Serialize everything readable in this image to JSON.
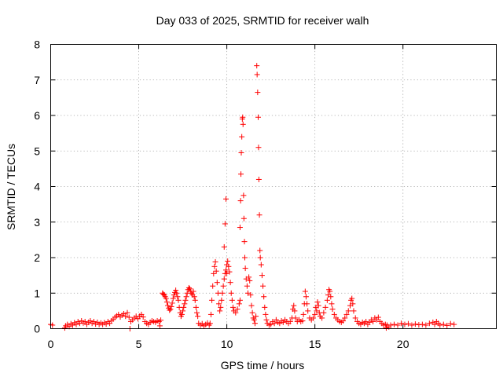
{
  "chart_data": {
    "type": "scatter",
    "title": "Day 033 of 2025, SRMTID for receiver walh",
    "xlabel": "GPS time / hours",
    "ylabel": "SRMTID / TECUs",
    "xlim": [
      0,
      25.3
    ],
    "ylim": [
      0,
      8
    ],
    "xticks": [
      0,
      5,
      10,
      15,
      20
    ],
    "yticks": [
      0,
      1,
      2,
      3,
      4,
      5,
      6,
      7,
      8
    ],
    "grid": true,
    "marker": "plus",
    "color": "#ff0000",
    "series": [
      {
        "name": "walh",
        "points": [
          [
            0.0,
            0.12
          ],
          [
            0.1,
            0.1
          ],
          [
            0.8,
            0.02
          ],
          [
            0.85,
            0.08
          ],
          [
            0.95,
            0.12
          ],
          [
            1.05,
            0.06
          ],
          [
            1.15,
            0.14
          ],
          [
            1.25,
            0.1
          ],
          [
            1.35,
            0.17
          ],
          [
            1.45,
            0.12
          ],
          [
            1.55,
            0.2
          ],
          [
            1.65,
            0.15
          ],
          [
            1.75,
            0.22
          ],
          [
            1.85,
            0.16
          ],
          [
            1.95,
            0.2
          ],
          [
            2.05,
            0.12
          ],
          [
            2.15,
            0.18
          ],
          [
            2.25,
            0.22
          ],
          [
            2.35,
            0.15
          ],
          [
            2.45,
            0.2
          ],
          [
            2.55,
            0.13
          ],
          [
            2.65,
            0.18
          ],
          [
            2.75,
            0.12
          ],
          [
            2.85,
            0.16
          ],
          [
            2.95,
            0.12
          ],
          [
            3.05,
            0.17
          ],
          [
            3.15,
            0.13
          ],
          [
            3.25,
            0.2
          ],
          [
            3.35,
            0.15
          ],
          [
            3.45,
            0.22
          ],
          [
            3.55,
            0.27
          ],
          [
            3.65,
            0.32
          ],
          [
            3.75,
            0.36
          ],
          [
            3.85,
            0.4
          ],
          [
            3.95,
            0.33
          ],
          [
            4.05,
            0.38
          ],
          [
            4.15,
            0.42
          ],
          [
            4.25,
            0.35
          ],
          [
            4.35,
            0.45
          ],
          [
            4.45,
            0.32
          ],
          [
            4.5,
            0.0
          ],
          [
            4.55,
            0.2
          ],
          [
            4.65,
            0.25
          ],
          [
            4.75,
            0.3
          ],
          [
            4.85,
            0.35
          ],
          [
            4.95,
            0.28
          ],
          [
            5.05,
            0.35
          ],
          [
            5.15,
            0.4
          ],
          [
            5.25,
            0.33
          ],
          [
            5.35,
            0.2
          ],
          [
            5.45,
            0.15
          ],
          [
            5.55,
            0.12
          ],
          [
            5.65,
            0.18
          ],
          [
            5.75,
            0.22
          ],
          [
            5.85,
            0.2
          ],
          [
            5.95,
            0.18
          ],
          [
            6.05,
            0.22
          ],
          [
            6.15,
            0.2
          ],
          [
            6.2,
            0.08
          ],
          [
            6.25,
            0.24
          ],
          [
            6.35,
            1.0
          ],
          [
            6.4,
            0.97
          ],
          [
            6.45,
            0.95
          ],
          [
            6.5,
            0.9
          ],
          [
            6.55,
            0.85
          ],
          [
            6.6,
            0.75
          ],
          [
            6.65,
            0.65
          ],
          [
            6.7,
            0.58
          ],
          [
            6.75,
            0.52
          ],
          [
            6.8,
            0.55
          ],
          [
            6.85,
            0.62
          ],
          [
            6.9,
            0.72
          ],
          [
            6.95,
            0.85
          ],
          [
            7.0,
            0.95
          ],
          [
            7.05,
            1.02
          ],
          [
            7.1,
            1.08
          ],
          [
            7.15,
            1.0
          ],
          [
            7.2,
            0.9
          ],
          [
            7.25,
            0.8
          ],
          [
            7.3,
            0.6
          ],
          [
            7.35,
            0.45
          ],
          [
            7.4,
            0.35
          ],
          [
            7.45,
            0.4
          ],
          [
            7.5,
            0.5
          ],
          [
            7.55,
            0.6
          ],
          [
            7.6,
            0.7
          ],
          [
            7.65,
            0.8
          ],
          [
            7.7,
            0.9
          ],
          [
            7.75,
            1.0
          ],
          [
            7.8,
            1.1
          ],
          [
            7.85,
            1.15
          ],
          [
            7.9,
            1.12
          ],
          [
            7.95,
            1.05
          ],
          [
            8.0,
            1.0
          ],
          [
            8.05,
            0.95
          ],
          [
            8.1,
            1.05
          ],
          [
            8.15,
            0.9
          ],
          [
            8.2,
            0.8
          ],
          [
            8.25,
            0.6
          ],
          [
            8.3,
            0.45
          ],
          [
            8.35,
            0.35
          ],
          [
            8.4,
            0.15
          ],
          [
            8.5,
            0.1
          ],
          [
            8.6,
            0.14
          ],
          [
            8.7,
            0.08
          ],
          [
            8.8,
            0.12
          ],
          [
            8.9,
            0.16
          ],
          [
            9.0,
            0.1
          ],
          [
            9.05,
            0.15
          ],
          [
            9.1,
            0.4
          ],
          [
            9.15,
            0.8
          ],
          [
            9.2,
            1.2
          ],
          [
            9.25,
            1.55
          ],
          [
            9.3,
            1.75
          ],
          [
            9.35,
            1.88
          ],
          [
            9.4,
            1.62
          ],
          [
            9.45,
            1.3
          ],
          [
            9.5,
            1.0
          ],
          [
            9.55,
            0.7
          ],
          [
            9.6,
            0.5
          ],
          [
            9.65,
            0.6
          ],
          [
            9.7,
            0.8
          ],
          [
            9.75,
            1.0
          ],
          [
            9.8,
            1.2
          ],
          [
            9.85,
            1.4
          ],
          [
            9.9,
            1.55
          ],
          [
            9.95,
            1.65
          ],
          [
            10.0,
            1.8
          ],
          [
            10.05,
            1.9
          ],
          [
            10.1,
            1.75
          ],
          [
            10.15,
            1.6
          ],
          [
            10.2,
            1.3
          ],
          [
            10.25,
            1.0
          ],
          [
            10.3,
            0.8
          ],
          [
            10.35,
            0.6
          ],
          [
            10.4,
            0.5
          ],
          [
            10.5,
            0.45
          ],
          [
            10.6,
            0.55
          ],
          [
            10.7,
            0.7
          ],
          [
            10.75,
            0.8
          ],
          [
            9.95,
            3.65
          ],
          [
            9.9,
            2.95
          ],
          [
            9.85,
            2.3
          ],
          [
            10.0,
            1.55
          ],
          [
            10.75,
            2.85
          ],
          [
            10.78,
            3.6
          ],
          [
            10.8,
            4.35
          ],
          [
            10.82,
            4.95
          ],
          [
            10.85,
            5.4
          ],
          [
            10.88,
            5.9
          ],
          [
            10.9,
            5.95
          ],
          [
            10.92,
            5.75
          ],
          [
            10.95,
            3.75
          ],
          [
            10.97,
            3.1
          ],
          [
            11.0,
            2.45
          ],
          [
            11.02,
            2.0
          ],
          [
            11.05,
            1.7
          ],
          [
            11.1,
            1.4
          ],
          [
            11.15,
            1.2
          ],
          [
            11.2,
            1.0
          ],
          [
            11.25,
            1.45
          ],
          [
            11.3,
            1.35
          ],
          [
            11.35,
            0.95
          ],
          [
            11.4,
            0.65
          ],
          [
            11.45,
            0.45
          ],
          [
            11.5,
            0.3
          ],
          [
            11.55,
            0.25
          ],
          [
            11.6,
            0.15
          ],
          [
            11.65,
            0.35
          ],
          [
            11.7,
            7.4
          ],
          [
            11.72,
            7.15
          ],
          [
            11.75,
            6.65
          ],
          [
            11.78,
            5.95
          ],
          [
            11.8,
            5.1
          ],
          [
            11.82,
            4.2
          ],
          [
            11.85,
            3.2
          ],
          [
            11.88,
            2.2
          ],
          [
            11.9,
            2.0
          ],
          [
            11.95,
            1.8
          ],
          [
            12.0,
            1.5
          ],
          [
            12.05,
            1.2
          ],
          [
            12.1,
            0.9
          ],
          [
            12.15,
            0.6
          ],
          [
            12.2,
            0.4
          ],
          [
            12.25,
            0.25
          ],
          [
            12.3,
            0.15
          ],
          [
            12.4,
            0.1
          ],
          [
            12.5,
            0.12
          ],
          [
            12.6,
            0.2
          ],
          [
            12.7,
            0.15
          ],
          [
            12.8,
            0.25
          ],
          [
            12.9,
            0.18
          ],
          [
            13.0,
            0.15
          ],
          [
            13.1,
            0.22
          ],
          [
            13.2,
            0.18
          ],
          [
            13.3,
            0.25
          ],
          [
            13.4,
            0.2
          ],
          [
            13.5,
            0.15
          ],
          [
            13.6,
            0.2
          ],
          [
            13.7,
            0.3
          ],
          [
            13.75,
            0.55
          ],
          [
            13.8,
            0.65
          ],
          [
            13.85,
            0.5
          ],
          [
            13.9,
            0.3
          ],
          [
            14.0,
            0.2
          ],
          [
            14.1,
            0.25
          ],
          [
            14.2,
            0.2
          ],
          [
            14.3,
            0.22
          ],
          [
            14.35,
            0.4
          ],
          [
            14.4,
            0.7
          ],
          [
            14.45,
            1.05
          ],
          [
            14.5,
            0.9
          ],
          [
            14.55,
            0.7
          ],
          [
            14.6,
            0.5
          ],
          [
            14.7,
            0.3
          ],
          [
            14.8,
            0.25
          ],
          [
            14.9,
            0.3
          ],
          [
            15.0,
            0.4
          ],
          [
            15.05,
            0.6
          ],
          [
            15.1,
            0.5
          ],
          [
            15.15,
            0.75
          ],
          [
            15.2,
            0.65
          ],
          [
            15.25,
            0.45
          ],
          [
            15.3,
            0.35
          ],
          [
            15.4,
            0.3
          ],
          [
            15.5,
            0.45
          ],
          [
            15.6,
            0.6
          ],
          [
            15.7,
            0.8
          ],
          [
            15.75,
            0.95
          ],
          [
            15.8,
            1.1
          ],
          [
            15.85,
            1.05
          ],
          [
            15.9,
            0.9
          ],
          [
            15.95,
            0.7
          ],
          [
            16.0,
            0.55
          ],
          [
            16.1,
            0.4
          ],
          [
            16.2,
            0.3
          ],
          [
            16.3,
            0.25
          ],
          [
            16.4,
            0.2
          ],
          [
            16.5,
            0.18
          ],
          [
            16.6,
            0.22
          ],
          [
            16.7,
            0.3
          ],
          [
            16.8,
            0.4
          ],
          [
            16.9,
            0.5
          ],
          [
            17.0,
            0.65
          ],
          [
            17.05,
            0.8
          ],
          [
            17.1,
            0.85
          ],
          [
            17.15,
            0.7
          ],
          [
            17.2,
            0.5
          ],
          [
            17.3,
            0.3
          ],
          [
            17.4,
            0.2
          ],
          [
            17.5,
            0.15
          ],
          [
            17.6,
            0.12
          ],
          [
            17.7,
            0.18
          ],
          [
            17.8,
            0.15
          ],
          [
            17.9,
            0.2
          ],
          [
            18.0,
            0.12
          ],
          [
            18.1,
            0.18
          ],
          [
            18.2,
            0.25
          ],
          [
            18.3,
            0.2
          ],
          [
            18.4,
            0.3
          ],
          [
            18.5,
            0.25
          ],
          [
            18.6,
            0.32
          ],
          [
            18.7,
            0.2
          ],
          [
            18.8,
            0.15
          ],
          [
            18.9,
            0.1
          ],
          [
            19.0,
            0.12
          ],
          [
            19.05,
            0.02
          ],
          [
            19.1,
            0.1
          ],
          [
            19.2,
            0.05
          ],
          [
            19.3,
            0.1
          ],
          [
            19.5,
            0.12
          ],
          [
            19.7,
            0.1
          ],
          [
            19.9,
            0.15
          ],
          [
            20.1,
            0.12
          ],
          [
            20.3,
            0.14
          ],
          [
            20.5,
            0.1
          ],
          [
            20.7,
            0.13
          ],
          [
            20.9,
            0.11
          ],
          [
            21.1,
            0.12
          ],
          [
            21.3,
            0.1
          ],
          [
            21.5,
            0.15
          ],
          [
            21.7,
            0.18
          ],
          [
            21.8,
            0.12
          ],
          [
            21.9,
            0.2
          ],
          [
            22.0,
            0.15
          ],
          [
            22.1,
            0.1
          ],
          [
            22.3,
            0.12
          ],
          [
            22.5,
            0.09
          ],
          [
            22.7,
            0.14
          ],
          [
            22.9,
            0.12
          ]
        ]
      }
    ]
  }
}
